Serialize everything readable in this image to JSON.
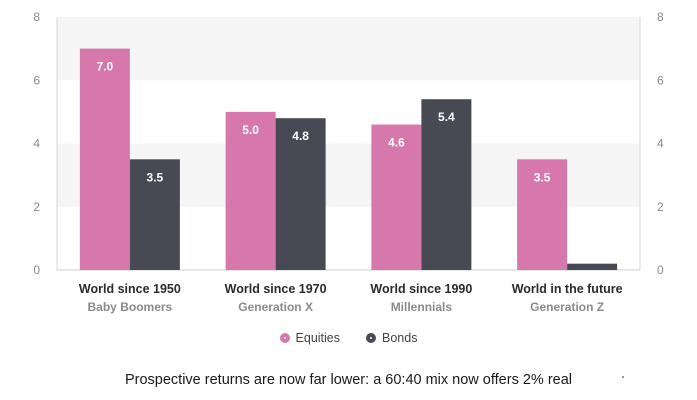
{
  "chart_data": {
    "type": "bar",
    "categories": [
      {
        "line1": "World since 1950",
        "line2": "Baby Boomers"
      },
      {
        "line1": "World since 1970",
        "line2": "Generation X"
      },
      {
        "line1": "World since 1990",
        "line2": "Millennials"
      },
      {
        "line1": "World in the future",
        "line2": "Generation Z"
      }
    ],
    "series": [
      {
        "name": "Equities",
        "color": "#d678ac",
        "values": [
          7.0,
          5.0,
          4.6,
          3.5
        ],
        "labels": [
          "7.0",
          "5.0",
          "4.6",
          "3.5"
        ]
      },
      {
        "name": "Bonds",
        "color": "#474a52",
        "values": [
          3.5,
          4.8,
          5.4,
          0.2
        ],
        "labels": [
          "3.5",
          "4.8",
          "5.4",
          ""
        ]
      }
    ],
    "ylim": [
      0,
      8
    ],
    "yticks": [
      0,
      2,
      4,
      6,
      8
    ],
    "legend_position": "bottom",
    "grid": "alternating bands"
  },
  "caption": "Prospective returns are now far lower: a 60:40 mix now offers 2% real"
}
